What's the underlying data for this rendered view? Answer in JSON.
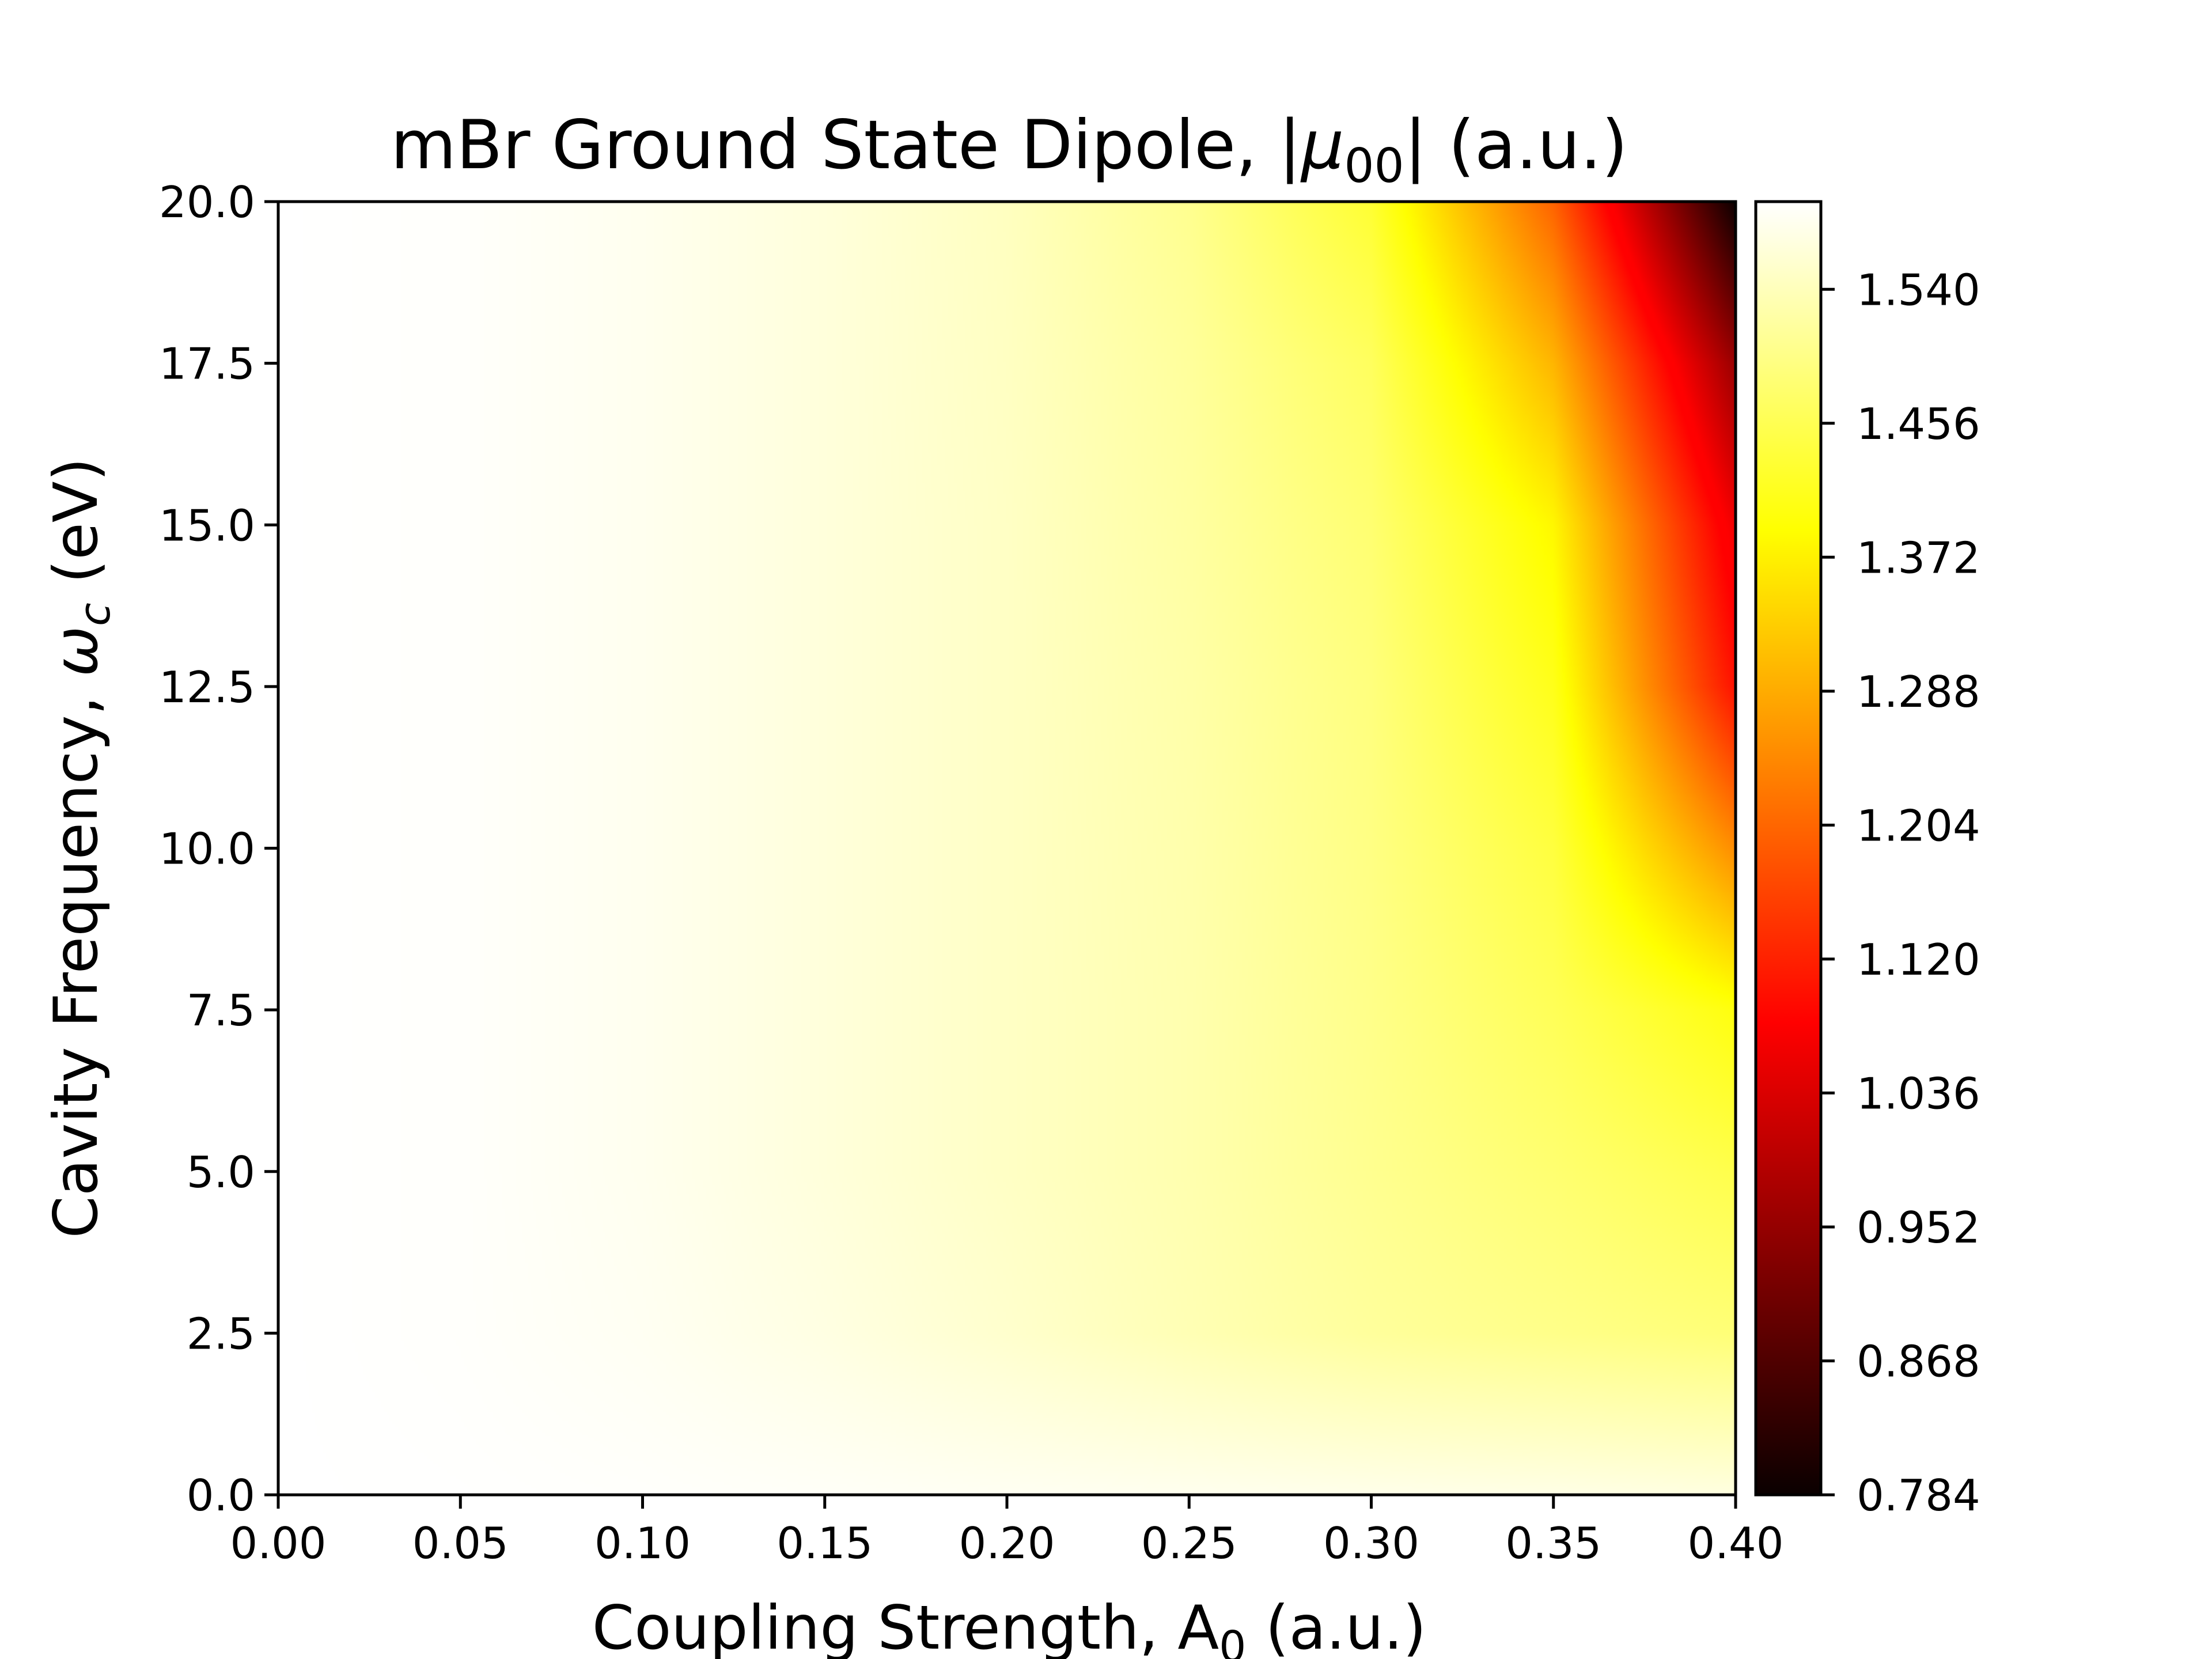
{
  "chart_data": {
    "type": "heatmap",
    "title_parts": {
      "prefix": "mBr Ground State Dipole, |",
      "symbol": "μ",
      "subscript": "00",
      "suffix": "| (a.u.)"
    },
    "xlabel_parts": {
      "prefix": "Coupling Strength, A",
      "subscript": "0",
      "suffix": " (a.u.)"
    },
    "ylabel_parts": {
      "prefix": "Cavity Frequency, ",
      "symbol": "ω",
      "subscript": "c",
      "suffix": " (eV)"
    },
    "xlim": [
      0.0,
      0.4
    ],
    "ylim": [
      0.0,
      20.0
    ],
    "x_ticks": [
      "0.00",
      "0.05",
      "0.10",
      "0.15",
      "0.20",
      "0.25",
      "0.30",
      "0.35",
      "0.40"
    ],
    "y_ticks": [
      "0.0",
      "2.5",
      "5.0",
      "7.5",
      "10.0",
      "12.5",
      "15.0",
      "17.5",
      "20.0"
    ],
    "colorbar": {
      "colormap": "hot",
      "range": [
        0.784,
        1.595
      ],
      "ticks": [
        "0.784",
        "0.868",
        "0.952",
        "1.036",
        "1.120",
        "1.204",
        "1.288",
        "1.372",
        "1.456",
        "1.540"
      ]
    },
    "x": [
      0.0,
      0.05,
      0.1,
      0.15,
      0.2,
      0.25,
      0.3,
      0.35,
      0.4
    ],
    "y": [
      0.0,
      2.5,
      5.0,
      7.5,
      10.0,
      12.5,
      15.0,
      17.5,
      20.0
    ],
    "z": [
      [
        1.595,
        1.594,
        1.592,
        1.589,
        1.585,
        1.582,
        1.578,
        1.575,
        1.57
      ],
      [
        1.595,
        1.592,
        1.585,
        1.572,
        1.555,
        1.535,
        1.515,
        1.5,
        1.485
      ],
      [
        1.595,
        1.592,
        1.582,
        1.566,
        1.548,
        1.53,
        1.505,
        1.48,
        1.45
      ],
      [
        1.595,
        1.592,
        1.582,
        1.566,
        1.548,
        1.53,
        1.5,
        1.46,
        1.4
      ],
      [
        1.595,
        1.592,
        1.582,
        1.566,
        1.548,
        1.528,
        1.495,
        1.44,
        1.25
      ],
      [
        1.595,
        1.592,
        1.582,
        1.566,
        1.548,
        1.525,
        1.49,
        1.41,
        1.1
      ],
      [
        1.595,
        1.592,
        1.582,
        1.566,
        1.548,
        1.52,
        1.48,
        1.38,
        1.05
      ],
      [
        1.595,
        1.592,
        1.582,
        1.566,
        1.546,
        1.515,
        1.465,
        1.3,
        0.95
      ],
      [
        1.595,
        1.592,
        1.582,
        1.566,
        1.544,
        1.505,
        1.43,
        1.2,
        0.784
      ]
    ]
  }
}
